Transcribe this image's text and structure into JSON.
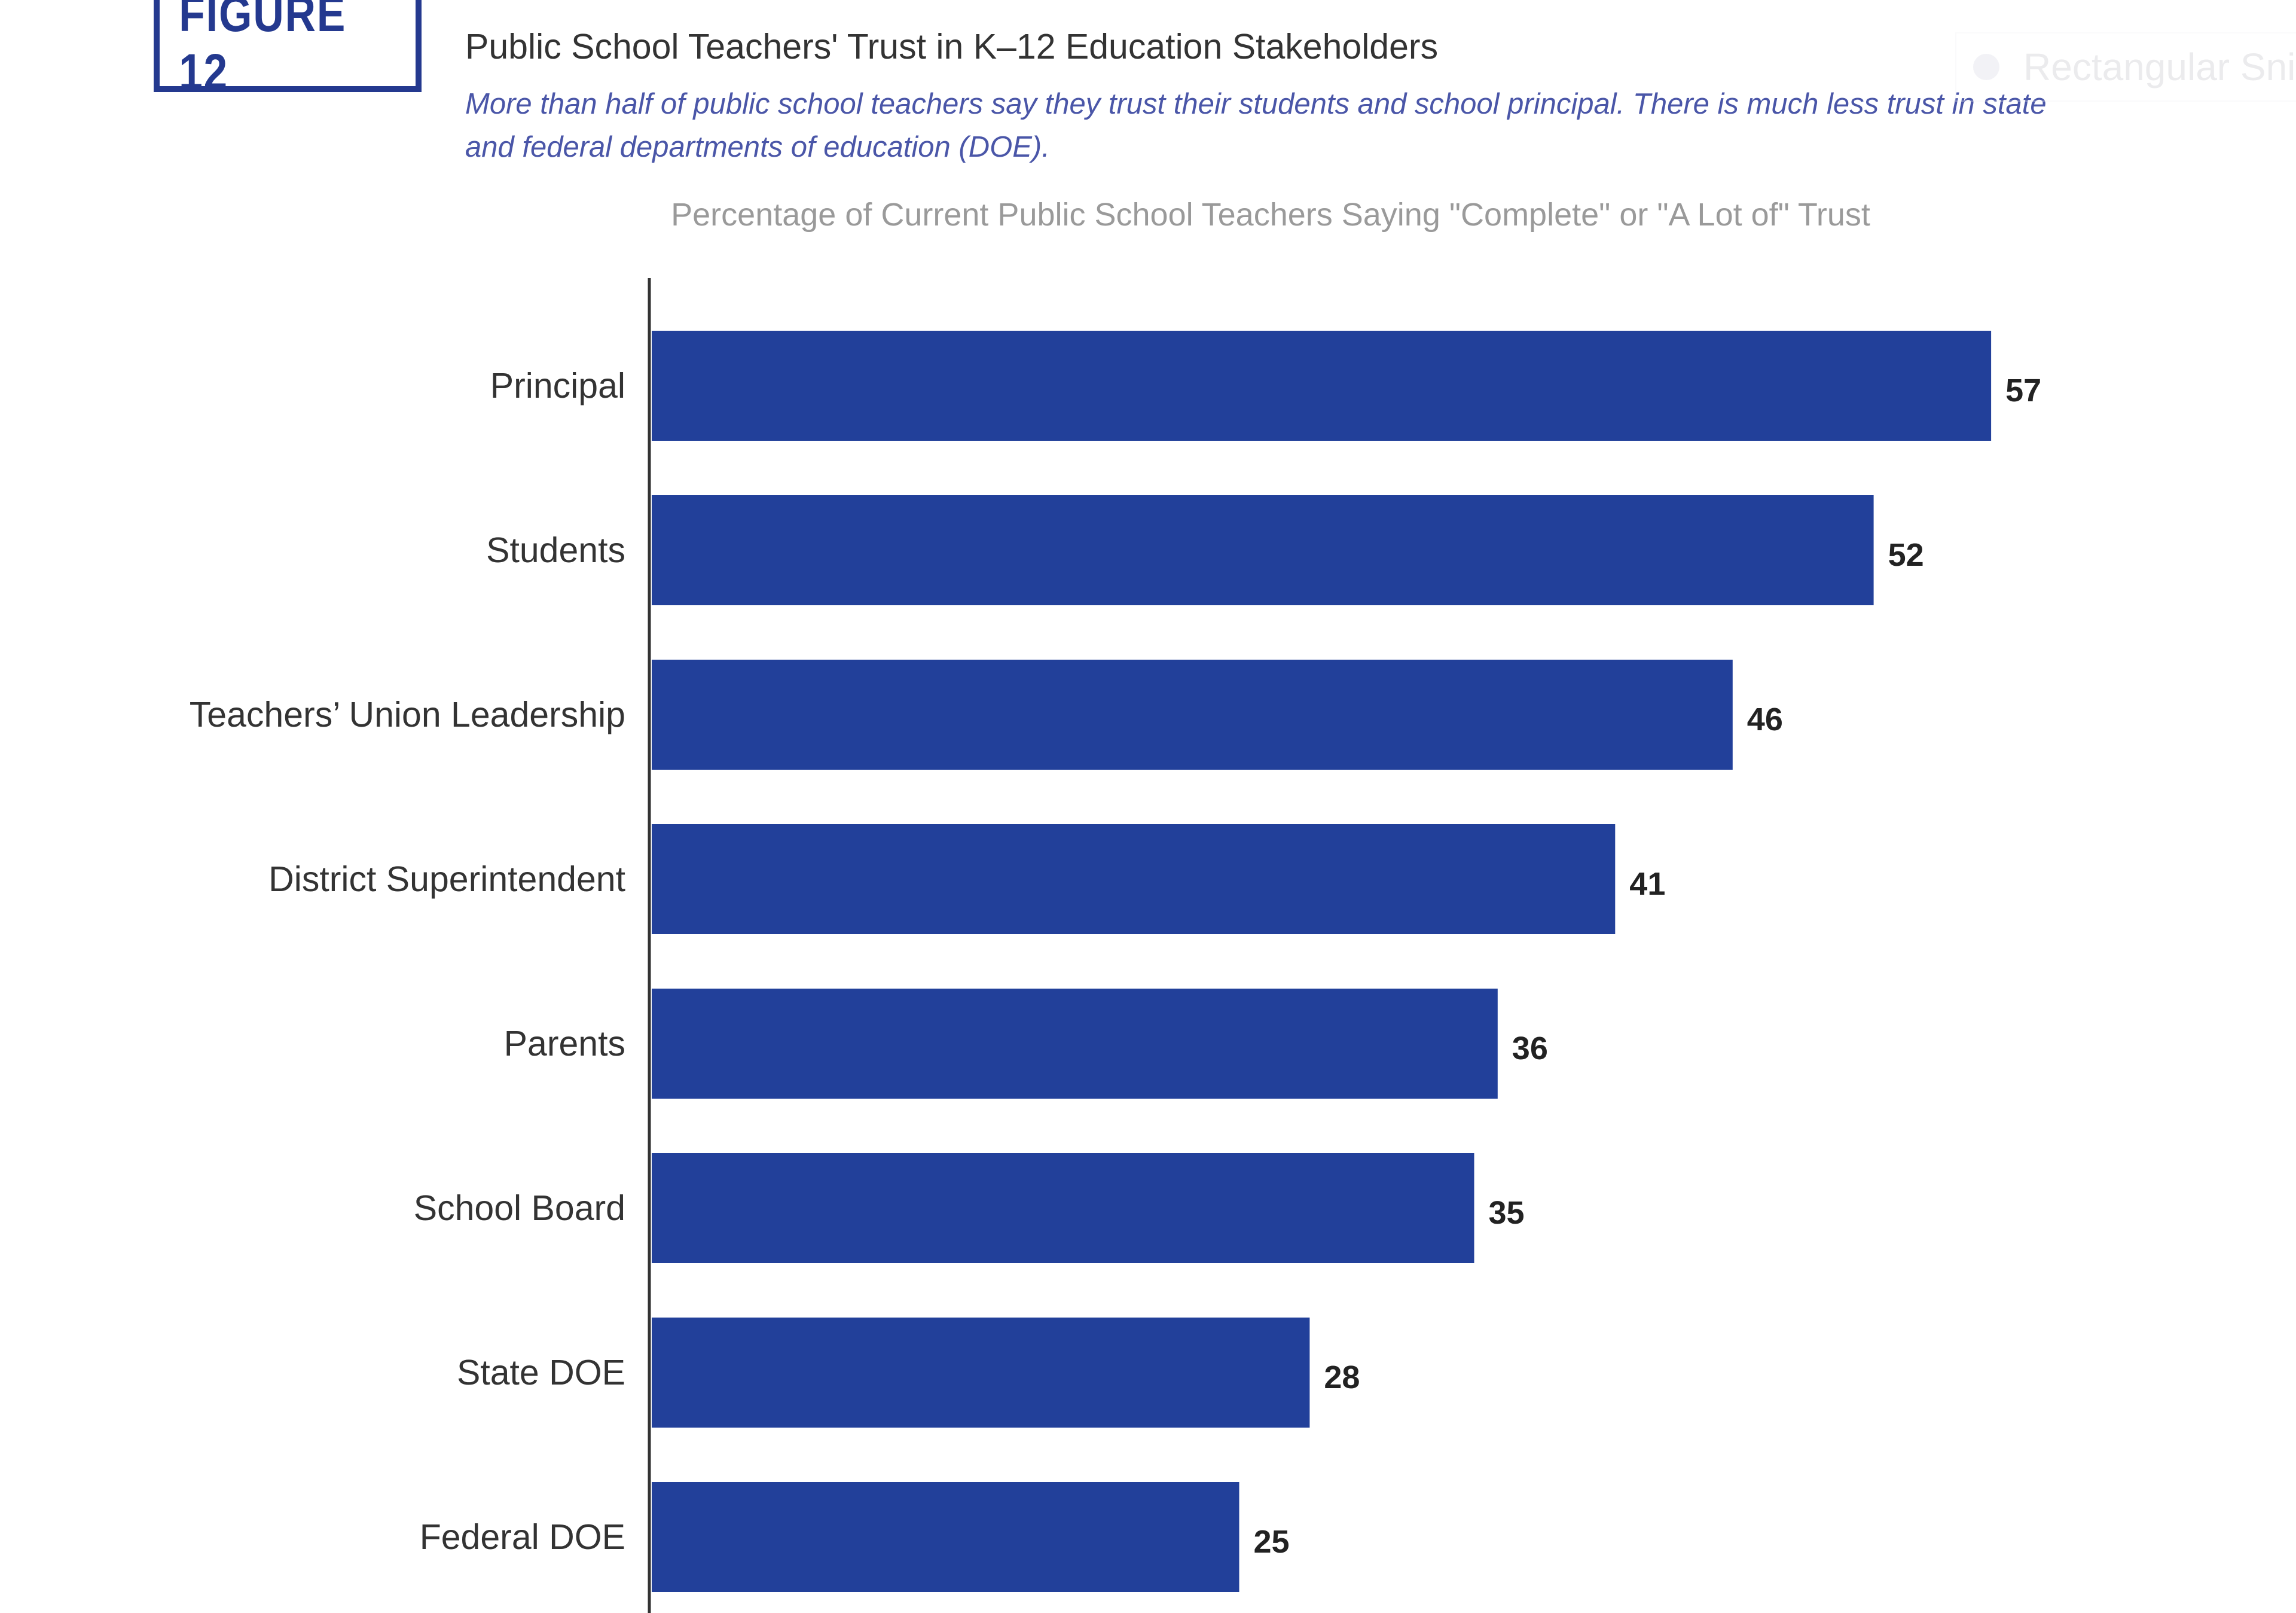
{
  "figure_label": "FIGURE 12",
  "snip_overlay": {
    "label": "Rectangular Sni"
  },
  "colors": {
    "bar": "#22409a",
    "accent": "#24398f",
    "subtitle": "#4a56a8"
  },
  "chart_data": {
    "type": "bar",
    "orientation": "horizontal",
    "title": "Public School Teachers' Trust in K–12 Education Stakeholders",
    "subtitle": "More than half of public school teachers say they trust their students and school principal. There is much less trust in state and federal departments of education (DOE).",
    "chart_title": "Percentage of Current Public School Teachers Saying \"Complete\" or \"A Lot of\" Trust",
    "categories": [
      "Principal",
      "Students",
      "Teachers’ Union Leadership",
      "District Superintendent",
      "Parents",
      "School Board",
      "State DOE",
      "Federal DOE"
    ],
    "values": [
      57,
      52,
      46,
      41,
      36,
      35,
      28,
      25
    ],
    "xlabel": "",
    "ylabel": "",
    "xlim": [
      0,
      57
    ],
    "grid": false
  }
}
